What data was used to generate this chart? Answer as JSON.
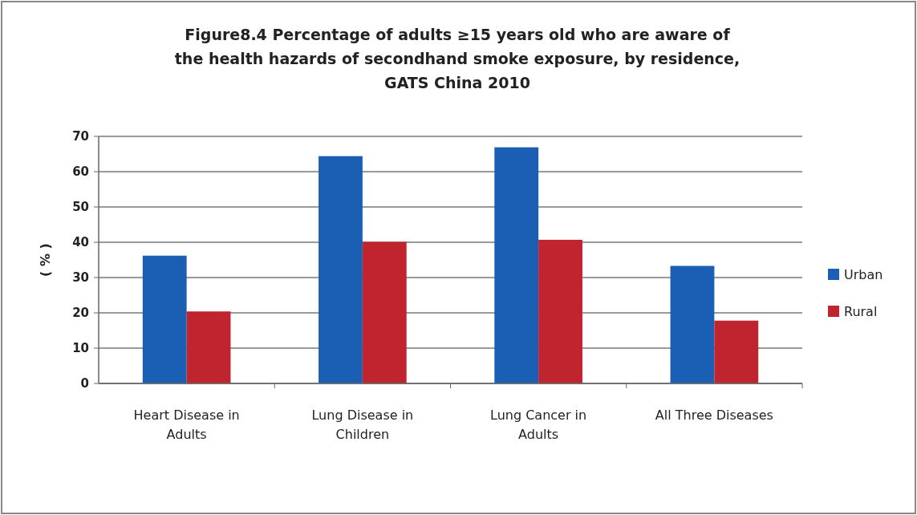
{
  "chart_data": {
    "type": "bar",
    "title": "Figure8.4  Percentage of adults ≥15 years old who are aware of the health hazards of secondhand smoke exposure, by residence, GATS China 2010",
    "ylabel": "( % )",
    "categories": [
      "Heart Disease  in Adults",
      "Lung Disease in Children",
      "Lung Cancer in Adults",
      "All Three Diseases"
    ],
    "series": [
      {
        "name": "Urban",
        "color": "#1a5fb4",
        "values": [
          36.2,
          64.4,
          66.9,
          33.3
        ]
      },
      {
        "name": "Rural",
        "color": "#c0242f",
        "values": [
          20.4,
          40.1,
          40.7,
          17.8
        ]
      }
    ],
    "ylim": [
      0,
      70
    ],
    "yticks": [
      0,
      10,
      20,
      30,
      40,
      50,
      60,
      70
    ],
    "grid": "y",
    "legend": "right"
  }
}
